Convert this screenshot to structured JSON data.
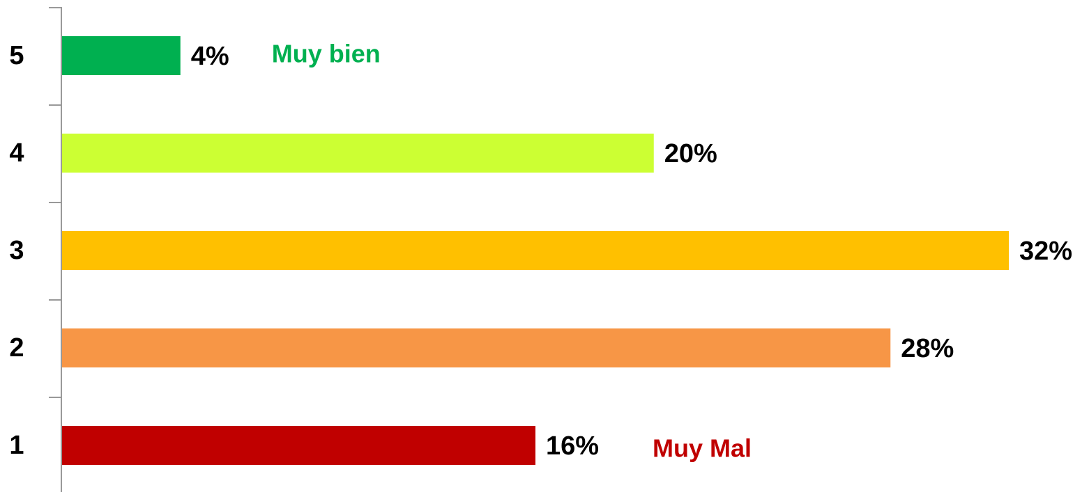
{
  "chart_data": {
    "type": "barh",
    "categories": [
      "5",
      "4",
      "3",
      "2",
      "1"
    ],
    "values": [
      4,
      20,
      32,
      28,
      16
    ],
    "value_labels": [
      "4%",
      "20%",
      "32%",
      "28%",
      "16%"
    ],
    "colors": [
      "#00b050",
      "#ccff33",
      "#ffc000",
      "#f79646",
      "#c00000"
    ],
    "annotations": [
      {
        "text": "Muy bien",
        "color": "#00b050"
      },
      {
        "text": "Muy Mal",
        "color": "#c00000"
      }
    ]
  }
}
